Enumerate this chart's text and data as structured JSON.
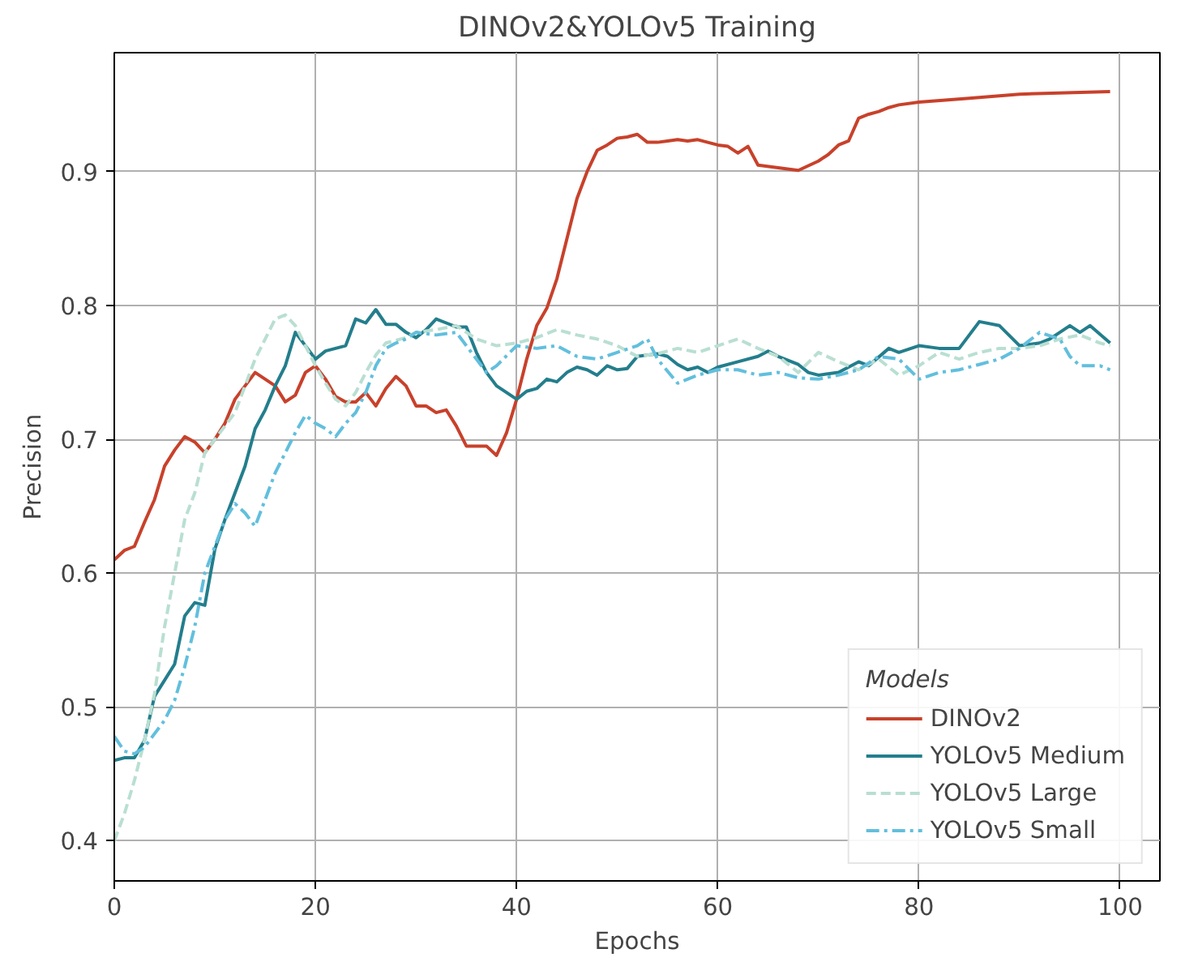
{
  "chart_data": {
    "type": "line",
    "title": "DINOv2&YOLOv5 Training",
    "xlabel": "Epochs",
    "ylabel": "Precision",
    "legend_title": "Models",
    "legend": "bottom right",
    "grid": true,
    "xlim": [
      0,
      103.95
    ],
    "ylim": [
      0.37,
      0.989
    ],
    "xticks": [
      0,
      20,
      40,
      60,
      80,
      100
    ],
    "yticks": [
      0.4,
      0.5,
      0.6,
      0.7,
      0.8,
      0.9
    ],
    "series": [
      {
        "name": "DINOv2",
        "color": "#c8412b",
        "line_style": "solid",
        "x": [
          0,
          1,
          2,
          3,
          4,
          5,
          6,
          7,
          8,
          9,
          10,
          11,
          12,
          13,
          14,
          15,
          16,
          17,
          18,
          19,
          20,
          21,
          22,
          23,
          24,
          25,
          26,
          27,
          28,
          29,
          30,
          31,
          32,
          33,
          34,
          35,
          36,
          37,
          38,
          39,
          40,
          41,
          42,
          43,
          44,
          45,
          46,
          47,
          48,
          49,
          50,
          51,
          52,
          53,
          54,
          55,
          56,
          57,
          58,
          59,
          60,
          61,
          62,
          63,
          64,
          66,
          68,
          70,
          71,
          72,
          73,
          74,
          75,
          76,
          77,
          78,
          80,
          85,
          90,
          99
        ],
        "values": [
          0.61,
          0.617,
          0.62,
          0.638,
          0.655,
          0.68,
          0.692,
          0.702,
          0.698,
          0.69,
          0.7,
          0.712,
          0.73,
          0.74,
          0.75,
          0.745,
          0.74,
          0.728,
          0.733,
          0.75,
          0.755,
          0.745,
          0.732,
          0.728,
          0.728,
          0.735,
          0.725,
          0.738,
          0.747,
          0.74,
          0.725,
          0.725,
          0.72,
          0.722,
          0.71,
          0.695,
          0.695,
          0.695,
          0.688,
          0.705,
          0.73,
          0.76,
          0.785,
          0.798,
          0.82,
          0.85,
          0.88,
          0.9,
          0.916,
          0.92,
          0.925,
          0.926,
          0.928,
          0.922,
          0.922,
          0.923,
          0.924,
          0.923,
          0.924,
          0.922,
          0.92,
          0.919,
          0.914,
          0.919,
          0.905,
          0.903,
          0.901,
          0.908,
          0.913,
          0.92,
          0.923,
          0.94,
          0.943,
          0.945,
          0.948,
          0.95,
          0.952,
          0.955,
          0.958,
          0.96
        ]
      },
      {
        "name": "YOLOv5 Medium",
        "color": "#237e8c",
        "line_style": "solid",
        "x": [
          0,
          1,
          2,
          3,
          4,
          5,
          6,
          7,
          8,
          9,
          10,
          11,
          12,
          13,
          14,
          15,
          16,
          17,
          18,
          19,
          20,
          21,
          22,
          23,
          24,
          25,
          26,
          27,
          28,
          29,
          30,
          31,
          32,
          33,
          34,
          35,
          36,
          37,
          38,
          39,
          40,
          41,
          42,
          43,
          44,
          45,
          46,
          47,
          48,
          49,
          50,
          51,
          52,
          53,
          54,
          55,
          56,
          57,
          58,
          59,
          60,
          62,
          64,
          65,
          66,
          68,
          69,
          70,
          72,
          74,
          75,
          77,
          78,
          80,
          82,
          84,
          86,
          88,
          90,
          92,
          93,
          95,
          96,
          97,
          99
        ],
        "values": [
          0.46,
          0.462,
          0.462,
          0.475,
          0.508,
          0.52,
          0.532,
          0.568,
          0.578,
          0.576,
          0.618,
          0.64,
          0.66,
          0.68,
          0.708,
          0.722,
          0.74,
          0.755,
          0.78,
          0.77,
          0.76,
          0.766,
          0.768,
          0.77,
          0.79,
          0.787,
          0.797,
          0.786,
          0.786,
          0.78,
          0.776,
          0.782,
          0.79,
          0.787,
          0.784,
          0.784,
          0.765,
          0.75,
          0.74,
          0.735,
          0.73,
          0.736,
          0.738,
          0.745,
          0.743,
          0.75,
          0.754,
          0.752,
          0.748,
          0.755,
          0.752,
          0.753,
          0.762,
          0.763,
          0.764,
          0.762,
          0.756,
          0.752,
          0.754,
          0.75,
          0.754,
          0.758,
          0.762,
          0.766,
          0.762,
          0.756,
          0.75,
          0.748,
          0.75,
          0.758,
          0.755,
          0.768,
          0.765,
          0.77,
          0.768,
          0.768,
          0.788,
          0.785,
          0.77,
          0.772,
          0.775,
          0.785,
          0.78,
          0.785,
          0.772
        ]
      },
      {
        "name": "YOLOv5 Large",
        "color": "#b9dfd2",
        "line_style": "dashed",
        "x": [
          0,
          1,
          2,
          3,
          4,
          5,
          6,
          7,
          8,
          9,
          10,
          11,
          12,
          13,
          14,
          15,
          16,
          17,
          18,
          19,
          20,
          21,
          22,
          23,
          24,
          25,
          26,
          27,
          28,
          29,
          30,
          32,
          34,
          36,
          38,
          40,
          42,
          44,
          46,
          48,
          50,
          52,
          54,
          56,
          58,
          60,
          62,
          64,
          66,
          68,
          70,
          72,
          74,
          76,
          78,
          80,
          82,
          84,
          86,
          88,
          90,
          92,
          94,
          96,
          98,
          99
        ],
        "values": [
          0.4,
          0.42,
          0.445,
          0.475,
          0.51,
          0.56,
          0.6,
          0.64,
          0.66,
          0.69,
          0.7,
          0.71,
          0.72,
          0.74,
          0.76,
          0.775,
          0.79,
          0.793,
          0.785,
          0.77,
          0.755,
          0.742,
          0.73,
          0.725,
          0.735,
          0.75,
          0.763,
          0.772,
          0.774,
          0.776,
          0.78,
          0.782,
          0.785,
          0.775,
          0.77,
          0.772,
          0.776,
          0.782,
          0.778,
          0.775,
          0.77,
          0.762,
          0.764,
          0.768,
          0.765,
          0.77,
          0.775,
          0.768,
          0.762,
          0.75,
          0.765,
          0.758,
          0.752,
          0.76,
          0.748,
          0.755,
          0.765,
          0.76,
          0.765,
          0.768,
          0.768,
          0.77,
          0.775,
          0.778,
          0.772,
          0.77
        ]
      },
      {
        "name": "YOLOv5 Small",
        "color": "#62bfdd",
        "line_style": "dashdot",
        "x": [
          0,
          1,
          2,
          3,
          4,
          5,
          6,
          7,
          8,
          9,
          10,
          11,
          12,
          13,
          14,
          15,
          16,
          17,
          18,
          19,
          20,
          21,
          22,
          23,
          24,
          25,
          26,
          27,
          28,
          29,
          30,
          32,
          34,
          36,
          37,
          38,
          40,
          42,
          44,
          46,
          48,
          50,
          52,
          53,
          54,
          56,
          58,
          60,
          62,
          64,
          66,
          68,
          70,
          72,
          74,
          76,
          78,
          80,
          82,
          84,
          86,
          88,
          90,
          92,
          94,
          95,
          96,
          98,
          99
        ],
        "values": [
          0.478,
          0.467,
          0.465,
          0.47,
          0.48,
          0.49,
          0.505,
          0.53,
          0.56,
          0.6,
          0.62,
          0.64,
          0.652,
          0.645,
          0.635,
          0.655,
          0.675,
          0.69,
          0.705,
          0.718,
          0.712,
          0.708,
          0.702,
          0.712,
          0.72,
          0.735,
          0.755,
          0.768,
          0.772,
          0.775,
          0.78,
          0.778,
          0.78,
          0.76,
          0.75,
          0.755,
          0.77,
          0.768,
          0.77,
          0.762,
          0.76,
          0.765,
          0.77,
          0.775,
          0.76,
          0.742,
          0.748,
          0.752,
          0.752,
          0.748,
          0.75,
          0.746,
          0.745,
          0.748,
          0.752,
          0.762,
          0.76,
          0.745,
          0.75,
          0.752,
          0.756,
          0.76,
          0.768,
          0.78,
          0.775,
          0.762,
          0.755,
          0.755,
          0.752
        ]
      }
    ]
  }
}
